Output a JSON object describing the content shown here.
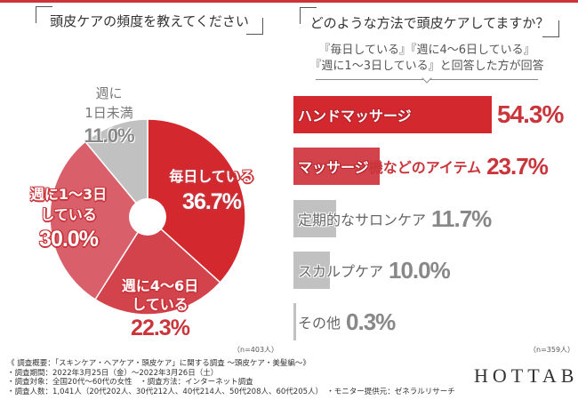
{
  "left": {
    "question": "頭皮ケアの頻度を教えてください",
    "n_note": "（n=403人）"
  },
  "right": {
    "question": "どのような方法で頭皮ケアしてますか？",
    "subtitle_line1": "『毎日している』『週に4〜6日している』",
    "subtitle_line2": "『週に1〜3日している』と回答した方が回答",
    "n_note": "（n=359人）"
  },
  "footer": {
    "line1": "《 調査概要：「スキンケア・ヘアケア・頭皮ケア」に関する調査 〜頭皮ケア・美髪編〜》",
    "line2": "・調査期間：2022年3月25日（金）〜2022年3月26日（土）",
    "line3": "・調査対象：全国20代〜60代の女性　・調査方法：インターネット調査",
    "line4": "・調査人数：1,041人（20代202人、30代212人、40代214人、50代208人、60代205人）　・モニター提供元：ゼネラルリサーチ"
  },
  "logo": "HOTTAB",
  "chart_data": [
    {
      "type": "pie",
      "donut": true,
      "start": "top, clockwise",
      "slices": [
        {
          "label_line1": "毎日している",
          "label_line2": "",
          "value": 36.7,
          "value_label": "36.7%",
          "color": "#d4282f"
        },
        {
          "label_line1": "週に4〜6日",
          "label_line2": "している",
          "value": 22.3,
          "value_label": "22.3%",
          "color": "#d2434c"
        },
        {
          "label_line1": "週に1〜3日",
          "label_line2": "している",
          "value": 30.0,
          "value_label": "30.0%",
          "color": "#d9606b"
        },
        {
          "label_line1": "週に",
          "label_line2": "1日未満",
          "value": 11.0,
          "value_label": "11.0%",
          "color": "#c1c1c1"
        }
      ]
    },
    {
      "type": "bar",
      "orientation": "horizontal",
      "categories": [
        "ハンドマッサージ",
        "マッサージ機などのアイテム",
        "定期的なサロンケア",
        "スカルプケア",
        "その他"
      ],
      "values": [
        54.3,
        23.7,
        11.7,
        10.0,
        0.3
      ],
      "value_labels": [
        "54.3%",
        "23.7%",
        "11.7%",
        "10.0%",
        "0.3%"
      ],
      "colors": [
        "#d4282f",
        "#d2434c",
        "#c1c1c1",
        "#c1c1c1",
        "#c1c1c1"
      ]
    }
  ]
}
